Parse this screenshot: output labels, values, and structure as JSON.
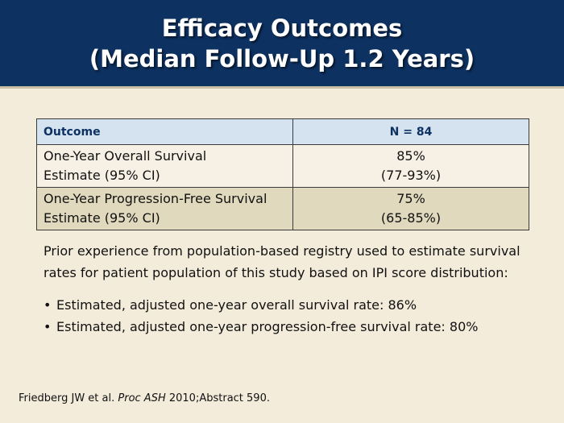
{
  "slide": {
    "title_line1": "Efficacy Outcomes",
    "title_line2": "(Median Follow-Up 1.2 Years)"
  },
  "table": {
    "headers": [
      "Outcome",
      "N = 84"
    ],
    "rows": [
      {
        "outcome_line1": "One-Year Overall Survival",
        "outcome_line2": "Estimate (95% CI)",
        "value_line1": "85%",
        "value_line2": "(77-93%)"
      },
      {
        "outcome_line1": "One-Year Progression-Free Survival",
        "outcome_line2": "Estimate (95% CI)",
        "value_line1": "75%",
        "value_line2": "(65-85%)"
      }
    ]
  },
  "body": {
    "intro": "Prior experience from population-based registry used to estimate survival rates for patient population of this study based on IPI score distribution:",
    "bullets": [
      "Estimated, adjusted one-year overall survival rate: 86%",
      "Estimated, adjusted one-year progression-free survival rate: 80%"
    ],
    "bullet_glyph": "•"
  },
  "citation": {
    "authors": "Friedberg JW et al. ",
    "journal": "Proc ASH",
    "details": " 2010;Abstract 590."
  },
  "colors": {
    "title_bar": "#0d3161",
    "background": "#f3ecdb",
    "header_row": "#d5e3f0",
    "row_light": "#f6f1e4",
    "row_dark": "#e0d9bd"
  }
}
